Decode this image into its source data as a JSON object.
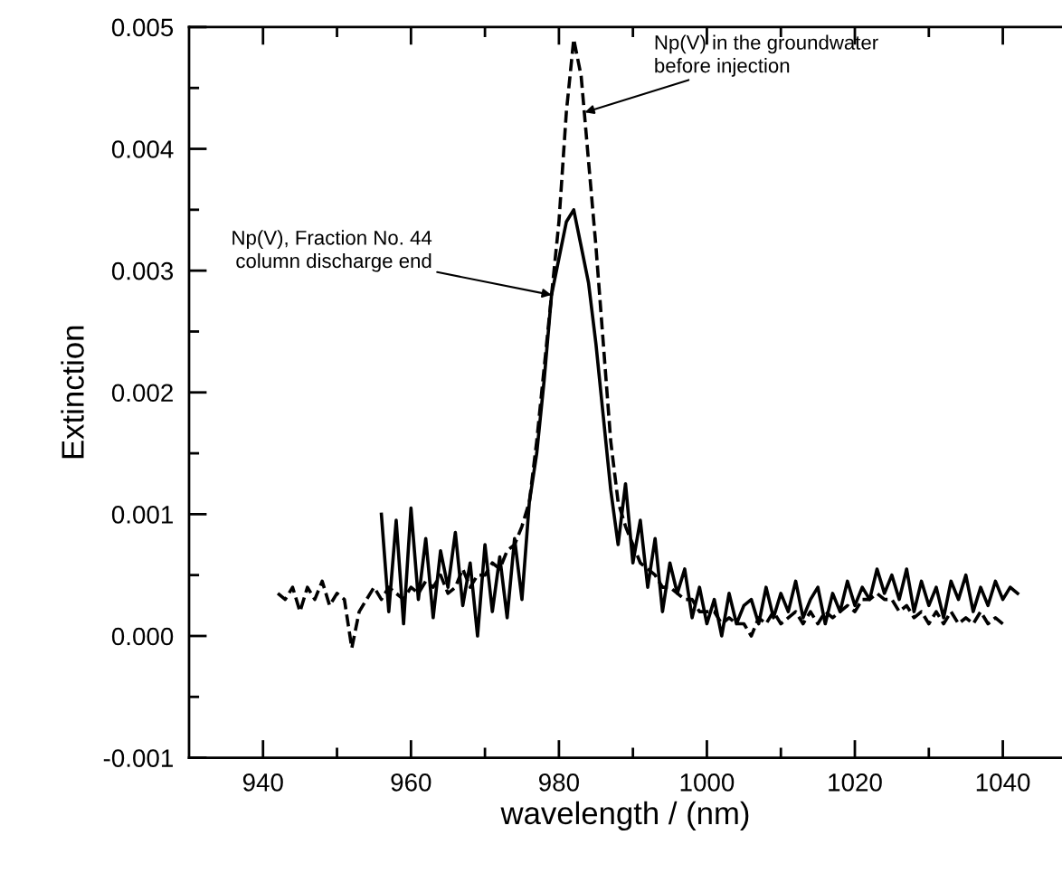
{
  "chart_data": {
    "type": "line",
    "xlabel": "wavelength / (nm)",
    "ylabel": "Extinction",
    "xlim": [
      930,
      1048
    ],
    "ylim": [
      -0.001,
      0.005
    ],
    "xticks": [
      940,
      960,
      980,
      1000,
      1020,
      1040,
      {
        "value": 950,
        "label": null
      },
      {
        "value": 970,
        "label": null
      },
      {
        "value": 990,
        "label": null
      },
      {
        "value": 1010,
        "label": null
      },
      {
        "value": 1030,
        "label": null
      }
    ],
    "yticks": [
      {
        "value": -0.001,
        "label": "-0.001"
      },
      {
        "value": 0,
        "label": "0.000"
      },
      {
        "value": 0.001,
        "label": "0.001"
      },
      {
        "value": 0.002,
        "label": "0.002"
      },
      {
        "value": 0.003,
        "label": "0.003"
      },
      {
        "value": 0.004,
        "label": "0.004"
      },
      {
        "value": 0.005,
        "label": "0.005"
      },
      {
        "value": -0.0005,
        "label": null
      },
      {
        "value": 0.0005,
        "label": null
      },
      {
        "value": 0.0015,
        "label": null
      },
      {
        "value": 0.0025,
        "label": null
      },
      {
        "value": 0.0035,
        "label": null
      },
      {
        "value": 0.0045,
        "label": null
      }
    ],
    "grid": false,
    "legend": false,
    "marker": "none",
    "series": [
      {
        "color": "#000000",
        "line_style": "dashed",
        "x": [
          942,
          943,
          944,
          945,
          946,
          947,
          948,
          949,
          950,
          951,
          952,
          953,
          954,
          955,
          956,
          957,
          958,
          959,
          960,
          961,
          962,
          963,
          964,
          965,
          966,
          967,
          968,
          969,
          970,
          971,
          972,
          973,
          974,
          975,
          976,
          977,
          978,
          979,
          980,
          981,
          982,
          983,
          984,
          985,
          986,
          987,
          988,
          989,
          990,
          991,
          992,
          993,
          994,
          995,
          996,
          997,
          998,
          999,
          1000,
          1001,
          1002,
          1003,
          1004,
          1005,
          1006,
          1007,
          1008,
          1009,
          1010,
          1011,
          1012,
          1013,
          1014,
          1015,
          1016,
          1017,
          1018,
          1019,
          1020,
          1021,
          1022,
          1023,
          1024,
          1025,
          1026,
          1027,
          1028,
          1029,
          1030,
          1031,
          1032,
          1033,
          1034,
          1035,
          1036,
          1037,
          1038,
          1039,
          1040
        ],
        "values": [
          0.00035,
          0.0003,
          0.0004,
          0.0002,
          0.0004,
          0.0003,
          0.00045,
          0.00025,
          0.00035,
          0.0003,
          -0.0001,
          0.0002,
          0.0003,
          0.0004,
          0.0003,
          0.0004,
          0.00035,
          0.0003,
          0.0004,
          0.00035,
          0.00045,
          0.0004,
          0.0005,
          0.00035,
          0.0004,
          0.00055,
          0.0004,
          0.0005,
          0.0005,
          0.0006,
          0.00055,
          0.0007,
          0.00075,
          0.0009,
          0.0011,
          0.0016,
          0.0022,
          0.0028,
          0.0034,
          0.0043,
          0.0049,
          0.0046,
          0.0039,
          0.0032,
          0.0024,
          0.0016,
          0.0011,
          0.0009,
          0.00075,
          0.0006,
          0.00055,
          0.0005,
          0.0004,
          0.0004,
          0.00035,
          0.0003,
          0.0003,
          0.0002,
          0.0002,
          0.0002,
          0.0001,
          0.00015,
          0.0001,
          0.0001,
          0.0,
          0.00015,
          0.0001,
          0.0002,
          0.0001,
          0.00015,
          0.0002,
          0.0001,
          0.0002,
          0.0001,
          0.0002,
          0.00015,
          0.0002,
          0.00025,
          0.0002,
          0.0003,
          0.0003,
          0.00035,
          0.0003,
          0.0003,
          0.0002,
          0.00025,
          0.00015,
          0.0002,
          0.0001,
          0.0002,
          0.0001,
          0.0002,
          0.0001,
          0.00015,
          0.0001,
          0.0002,
          0.0001,
          0.00015,
          0.0001
        ]
      },
      {
        "color": "#000000",
        "line_style": "solid",
        "x": [
          956,
          957,
          958,
          959,
          960,
          961,
          962,
          963,
          964,
          965,
          966,
          967,
          968,
          969,
          970,
          971,
          972,
          973,
          974,
          975,
          976,
          977,
          978,
          979,
          980,
          981,
          982,
          983,
          984,
          985,
          986,
          987,
          988,
          989,
          990,
          991,
          992,
          993,
          994,
          995,
          996,
          997,
          998,
          999,
          1000,
          1001,
          1002,
          1003,
          1004,
          1005,
          1006,
          1007,
          1008,
          1009,
          1010,
          1011,
          1012,
          1013,
          1014,
          1015,
          1016,
          1017,
          1018,
          1019,
          1020,
          1021,
          1022,
          1023,
          1024,
          1025,
          1026,
          1027,
          1028,
          1029,
          1030,
          1031,
          1032,
          1033,
          1034,
          1035,
          1036,
          1037,
          1038,
          1039,
          1040,
          1041,
          1042
        ],
        "values": [
          0.001,
          0.0002,
          0.00095,
          0.0001,
          0.00105,
          0.0003,
          0.0008,
          0.00015,
          0.0007,
          0.0004,
          0.00085,
          0.00025,
          0.0006,
          0.0,
          0.00075,
          0.0002,
          0.00065,
          0.00015,
          0.0008,
          0.0003,
          0.0011,
          0.0015,
          0.0021,
          0.0028,
          0.0031,
          0.0034,
          0.0035,
          0.0032,
          0.0029,
          0.0024,
          0.0018,
          0.0012,
          0.00075,
          0.00125,
          0.0006,
          0.00095,
          0.0004,
          0.0008,
          0.0002,
          0.0006,
          0.00035,
          0.00055,
          0.00015,
          0.0004,
          0.0001,
          0.0003,
          0.0,
          0.00035,
          0.0001,
          0.00025,
          0.0003,
          0.0001,
          0.0004,
          0.00015,
          0.00035,
          0.0002,
          0.00045,
          0.00015,
          0.0003,
          0.0004,
          0.0001,
          0.00035,
          0.0002,
          0.00045,
          0.00025,
          0.0004,
          0.0003,
          0.00055,
          0.00035,
          0.0005,
          0.0003,
          0.00055,
          0.0002,
          0.00045,
          0.00025,
          0.0004,
          0.00015,
          0.00045,
          0.0003,
          0.0005,
          0.0002,
          0.0004,
          0.00025,
          0.00045,
          0.0003,
          0.0004,
          0.00035
        ]
      }
    ],
    "annotations": [
      {
        "text": "Np(V) in the groundwater\nbefore injection",
        "x": 983.5,
        "y": 0.0043
      },
      {
        "text": "Np(V), Fraction No. 44\ncolumn discharge end",
        "x": 979,
        "y": 0.0028
      }
    ]
  }
}
